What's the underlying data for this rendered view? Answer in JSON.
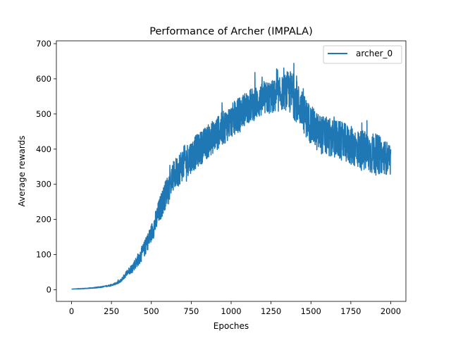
{
  "chart_data": {
    "type": "line",
    "title": "Performance of Archer (IMPALA)",
    "xlabel": "Epoches",
    "ylabel": "Average rewards",
    "xlim": [
      -95,
      2095
    ],
    "ylim": [
      -33,
      708
    ],
    "x_ticks": [
      0,
      250,
      500,
      750,
      1000,
      1250,
      1500,
      1750,
      2000
    ],
    "y_ticks": [
      0,
      100,
      200,
      300,
      400,
      500,
      600,
      700
    ],
    "grid": false,
    "legend_position": "top-right",
    "series": [
      {
        "name": "archer_0",
        "color": "#1f77b4",
        "x": [
          0,
          50,
          100,
          150,
          200,
          250,
          300,
          325,
          350,
          375,
          400,
          425,
          450,
          475,
          500,
          525,
          550,
          575,
          600,
          625,
          650,
          675,
          700,
          725,
          750,
          775,
          800,
          825,
          850,
          875,
          900,
          925,
          950,
          975,
          1000,
          1025,
          1050,
          1075,
          1100,
          1125,
          1150,
          1175,
          1200,
          1225,
          1250,
          1275,
          1300,
          1325,
          1350,
          1375,
          1400,
          1425,
          1450,
          1475,
          1500,
          1525,
          1550,
          1575,
          1600,
          1625,
          1650,
          1675,
          1700,
          1725,
          1750,
          1775,
          1800,
          1825,
          1850,
          1875,
          1900,
          1925,
          1950,
          1975,
          2000
        ],
        "values": [
          2,
          3,
          4,
          6,
          9,
          13,
          22,
          35,
          50,
          60,
          75,
          92,
          110,
          135,
          160,
          190,
          225,
          255,
          285,
          310,
          330,
          345,
          360,
          370,
          380,
          390,
          400,
          410,
          420,
          430,
          440,
          450,
          460,
          470,
          480,
          490,
          500,
          510,
          520,
          525,
          530,
          535,
          540,
          545,
          548,
          550,
          555,
          560,
          565,
          560,
          545,
          525,
          505,
          485,
          470,
          455,
          445,
          440,
          435,
          430,
          428,
          425,
          420,
          415,
          410,
          405,
          400,
          395,
          390,
          388,
          385,
          383,
          380,
          375,
          360
        ],
        "noise": [
          0,
          1,
          1,
          2,
          2,
          3,
          5,
          8,
          12,
          15,
          20,
          25,
          28,
          30,
          35,
          40,
          45,
          50,
          50,
          55,
          55,
          60,
          60,
          60,
          60,
          60,
          60,
          60,
          60,
          60,
          60,
          60,
          60,
          60,
          60,
          60,
          60,
          60,
          60,
          60,
          60,
          60,
          60,
          60,
          60,
          60,
          60,
          60,
          70,
          80,
          80,
          70,
          70,
          70,
          70,
          70,
          70,
          70,
          70,
          70,
          70,
          70,
          70,
          70,
          70,
          70,
          70,
          75,
          75,
          75,
          75,
          70,
          60,
          60,
          50
        ]
      }
    ]
  }
}
